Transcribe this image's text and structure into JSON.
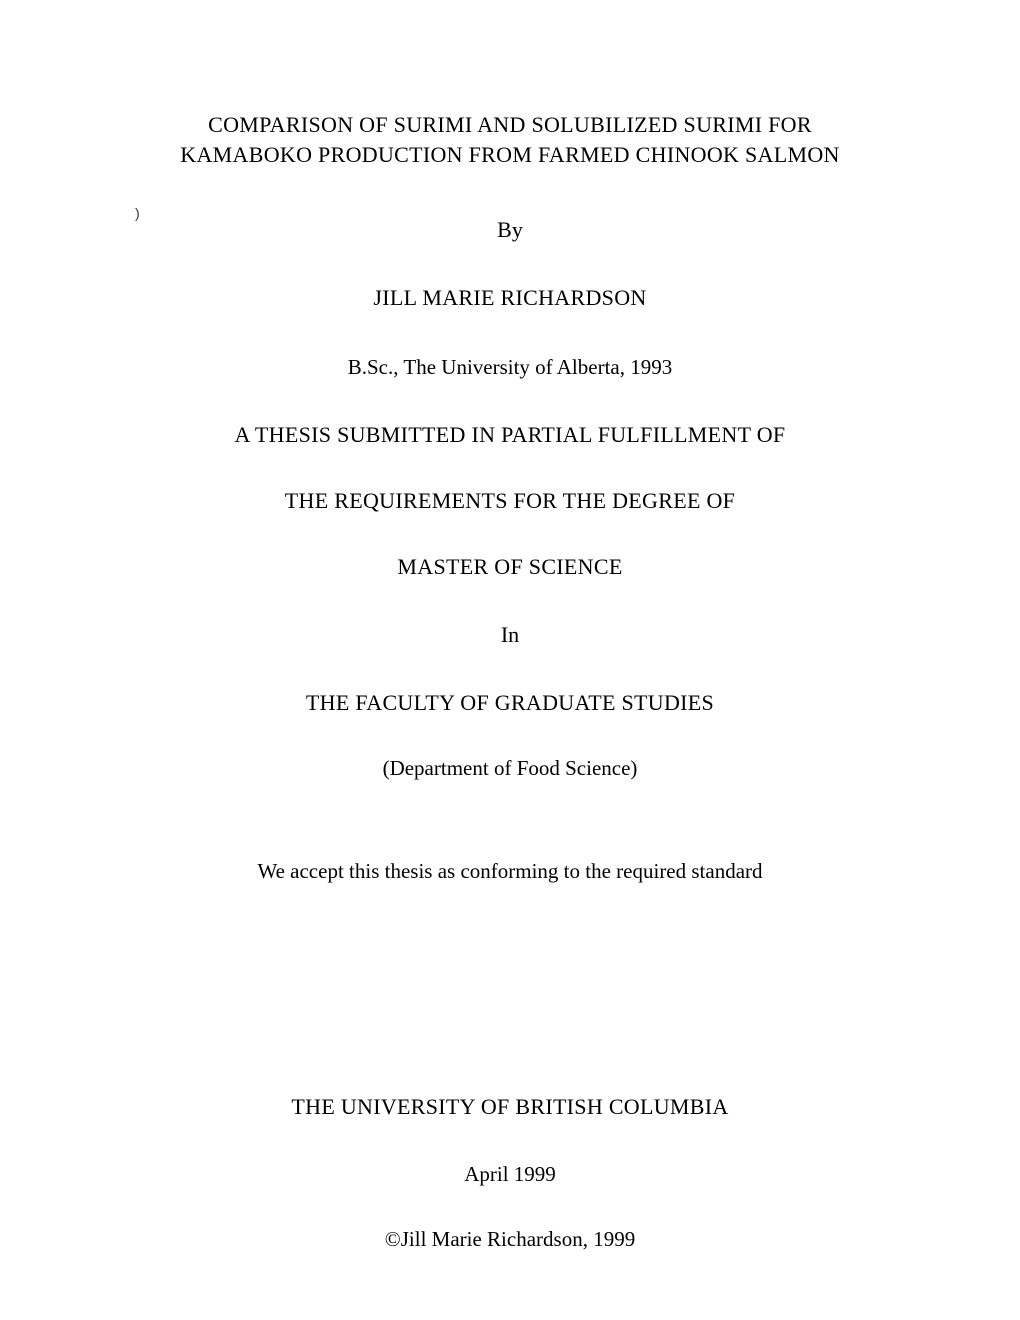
{
  "page": {
    "background_color": "#ffffff",
    "text_color": "#000000",
    "font_family": "Times New Roman",
    "base_fontsize": 22
  },
  "title": {
    "line1": "COMPARISON OF SURIMI AND SOLUBILIZED SURIMI FOR",
    "line2": "KAMABOKO PRODUCTION FROM FARMED CHINOOK SALMON"
  },
  "by_label": "By",
  "author_name": "JILL MARIE RICHARDSON",
  "prior_degree": "B.Sc., The University of Alberta, 1993",
  "thesis_statement": {
    "line1": "A THESIS SUBMITTED IN PARTIAL FULFILLMENT OF",
    "line2": "THE REQUIREMENTS FOR THE DEGREE OF"
  },
  "degree": "MASTER OF SCIENCE",
  "in_label": "In",
  "faculty": "THE FACULTY OF GRADUATE STUDIES",
  "department": "(Department of Food Science)",
  "acceptance_statement": "We accept this thesis as conforming to the required standard",
  "university": "THE UNIVERSITY OF BRITISH COLUMBIA",
  "date": "April 1999",
  "copyright": "©Jill Marie Richardson, 1999",
  "stray_mark_glyph": ")"
}
